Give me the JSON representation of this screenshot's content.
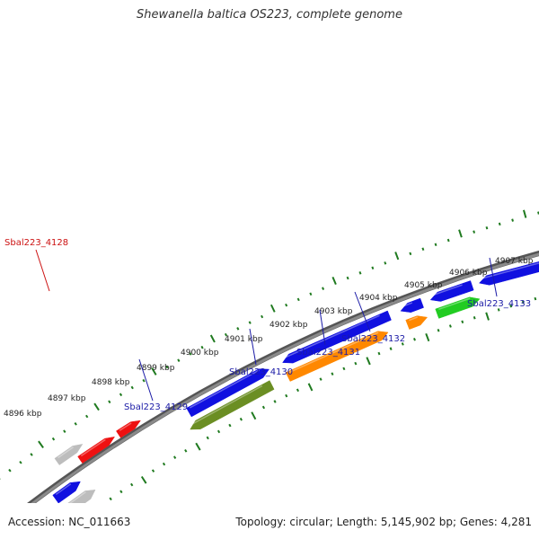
{
  "title": "Shewanella baltica OS223, complete genome",
  "footer": {
    "accession": "Accession: NC_011663",
    "topology": "Topology: circular; Length: 5,145,902 bp; Genes: 4,281"
  },
  "colors": {
    "backbone": "#8a8a8a",
    "ticks": "#1f7a1f",
    "gene_blue": "#1010e0",
    "gene_red": "#ee1111",
    "gene_grey": "#bdbdbd",
    "gene_orange": "#ff8800",
    "gene_olive": "#6b8e23",
    "gene_green": "#22cc22",
    "label_blue": "#1a1aa6",
    "label_red": "#cc1111"
  },
  "ticks": [
    {
      "label": "4896 kbp"
    },
    {
      "label": "4897 kbp"
    },
    {
      "label": "4898 kbp"
    },
    {
      "label": "4899 kbp"
    },
    {
      "label": "4900 kbp"
    },
    {
      "label": "4901 kbp"
    },
    {
      "label": "4902 kbp"
    },
    {
      "label": "4903 kbp"
    },
    {
      "label": "4904 kbp"
    },
    {
      "label": "4905 kbp"
    },
    {
      "label": "4906 kbp"
    },
    {
      "label": "4907 kbp"
    }
  ],
  "gene_labels": [
    {
      "text": "Sbal223_4128",
      "color": "label_red"
    },
    {
      "text": "Sbal223_4129",
      "color": "label_blue"
    },
    {
      "text": "Sbal223_4130",
      "color": "label_blue"
    },
    {
      "text": "Sbal223_4131",
      "color": "label_blue"
    },
    {
      "text": "Sbal223_4132",
      "color": "label_blue"
    },
    {
      "text": "Sbal223_4133",
      "color": "label_blue"
    }
  ]
}
